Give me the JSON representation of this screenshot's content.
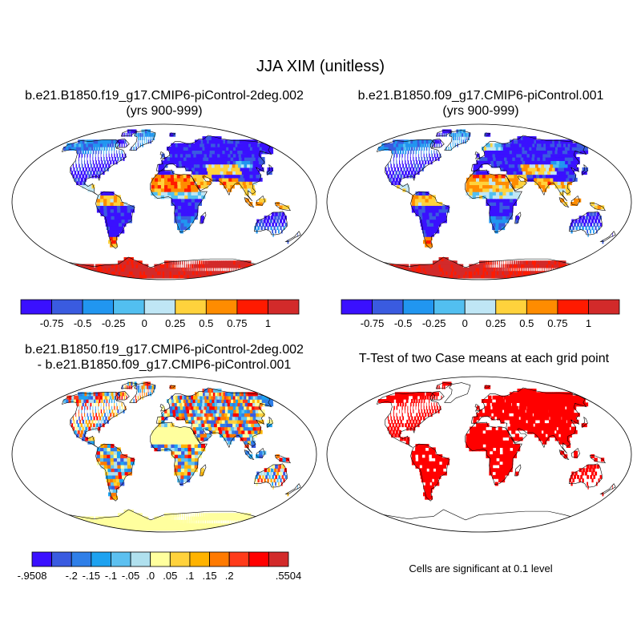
{
  "title": "JJA XIM (unitless)",
  "panels": {
    "top_left": {
      "title_line1": "b.e21.B1850.f19_g17.CMIP6-piControl-2deg.002",
      "title_line2": "(yrs 900-999)"
    },
    "top_right": {
      "title_line1": "b.e21.B1850.f09_g17.CMIP6-piControl.001",
      "title_line2": "(yrs 900-999)"
    },
    "bottom_left": {
      "title_line1": "b.e21.B1850.f19_g17.CMIP6-piControl-2deg.002",
      "title_line2": "- b.e21.B1850.f09_g17.CMIP6-piControl.001"
    },
    "bottom_right": {
      "title_line1": "T-Test of two Case means at each grid point",
      "note": "Cells are significant at 0.1 level"
    }
  },
  "colorbars": {
    "main": {
      "colors": [
        "#3a10ff",
        "#3a5be0",
        "#2196f0",
        "#52bff0",
        "#bfe6f5",
        "#ffd23c",
        "#ff8c00",
        "#ff1a00",
        "#d22a2a"
      ],
      "labels": [
        "-0.75",
        "-0.5",
        "-0.25",
        "0",
        "0.25",
        "0.5",
        "0.75",
        "1"
      ]
    },
    "diff": {
      "colors": [
        "#3a10ff",
        "#3a5be0",
        "#2f7fe8",
        "#1ea2f0",
        "#5cc0f0",
        "#b0e0ee",
        "#ffff9e",
        "#ffd23c",
        "#ffb300",
        "#ff7a00",
        "#ff3b1a",
        "#ff0000",
        "#d22a2a"
      ],
      "labels": [
        "-.9508",
        "-.2",
        "-.15",
        "-.1",
        "-.05",
        ".0",
        ".05",
        ".1",
        ".15",
        ".2",
        ".5504"
      ]
    }
  },
  "significance_color": "#ff0000"
}
